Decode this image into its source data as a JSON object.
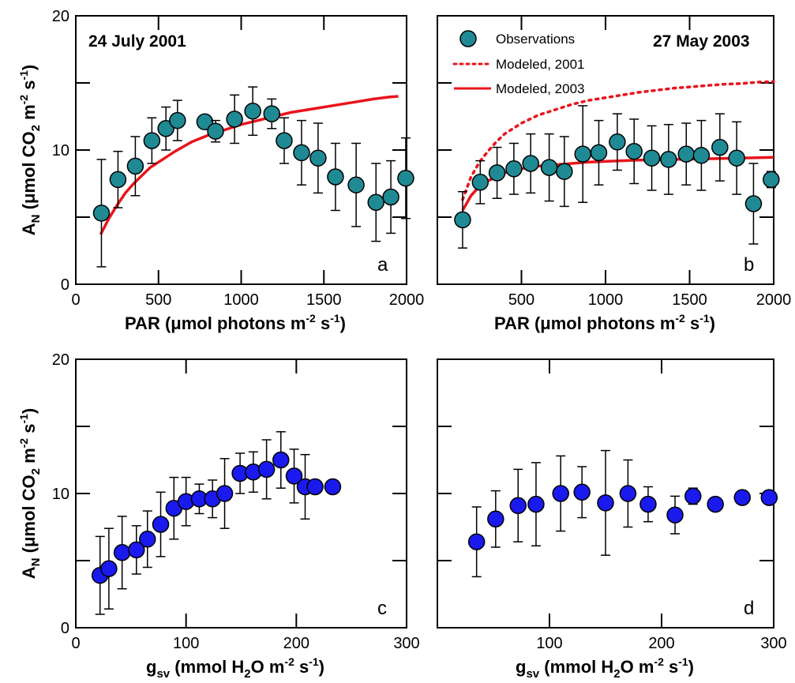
{
  "chart_data": [
    {
      "panel": "a",
      "type": "scatter",
      "annotation": "24 July 2001",
      "xlabel": "PAR (μmol photons m-2 s-1)",
      "ylabel": "AN (μmol CO2 m-2 s-1)",
      "xlim": [
        0,
        2000
      ],
      "ylim": [
        0,
        20
      ],
      "xticks": [
        0,
        500,
        1000,
        1500,
        2000
      ],
      "yticks": [
        0,
        10,
        20
      ],
      "marker_color": "#1f8a94",
      "line_color": "#e8141c",
      "series": [
        {
          "kind": "points",
          "x": [
            155,
            255,
            360,
            460,
            545,
            615,
            780,
            845,
            960,
            1070,
            1185,
            1260,
            1365,
            1465,
            1570,
            1695,
            1815,
            1905,
            1995
          ],
          "y": [
            5.3,
            7.8,
            8.8,
            10.7,
            11.6,
            12.2,
            12.1,
            11.4,
            12.3,
            12.9,
            12.7,
            10.7,
            9.8,
            9.4,
            8.0,
            7.4,
            6.1,
            6.5,
            7.9
          ],
          "err": [
            4.0,
            2.1,
            2.2,
            1.7,
            1.6,
            1.5,
            0.4,
            0.8,
            1.8,
            1.8,
            1.1,
            1.7,
            2.4,
            2.6,
            2.5,
            3.1,
            2.9,
            2.7,
            3.0
          ]
        },
        {
          "kind": "line",
          "style": "solid",
          "x": [
            150,
            200,
            250,
            300,
            350,
            400,
            450,
            500,
            600,
            700,
            800,
            900,
            1000,
            1100,
            1200,
            1300,
            1400,
            1500,
            1600,
            1700,
            1800,
            1900,
            1950
          ],
          "y": [
            3.7,
            4.9,
            5.9,
            6.8,
            7.5,
            8.1,
            8.7,
            9.1,
            9.9,
            10.6,
            11.1,
            11.5,
            11.9,
            12.2,
            12.5,
            12.8,
            13.0,
            13.2,
            13.4,
            13.6,
            13.8,
            13.95,
            14.0
          ]
        }
      ]
    },
    {
      "panel": "b",
      "type": "scatter",
      "annotation": "27 May 2003",
      "xlabel": "PAR (μmol photons m-2 s-1)",
      "ylabel": "",
      "xlim": [
        0,
        2000
      ],
      "ylim": [
        0,
        20
      ],
      "xticks": [
        500,
        1000,
        1500,
        2000
      ],
      "yticks": [],
      "marker_color": "#1f8a94",
      "line_color": "#e8141c",
      "legend": [
        "Observations",
        "Modeled, 2001",
        "Modeled, 2003"
      ],
      "legend_position": "top-left",
      "series": [
        {
          "name": "Observations",
          "kind": "points",
          "x": [
            150,
            255,
            355,
            455,
            555,
            665,
            755,
            865,
            960,
            1070,
            1170,
            1275,
            1375,
            1480,
            1570,
            1680,
            1780,
            1880,
            1985
          ],
          "y": [
            4.8,
            7.6,
            8.3,
            8.6,
            9.0,
            8.7,
            8.4,
            9.7,
            9.8,
            10.6,
            9.9,
            9.4,
            9.3,
            9.7,
            9.6,
            10.2,
            9.4,
            6.0,
            7.8
          ],
          "err": [
            2.1,
            1.6,
            1.9,
            1.9,
            2.2,
            2.5,
            2.6,
            3.6,
            2.4,
            2.1,
            2.4,
            2.4,
            2.6,
            2.3,
            2.6,
            2.5,
            2.7,
            3.0,
            0.6
          ]
        },
        {
          "name": "Modeled, 2001",
          "kind": "line",
          "style": "dotted",
          "x": [
            150,
            200,
            250,
            300,
            350,
            400,
            500,
            600,
            700,
            800,
            900,
            1000,
            1100,
            1200,
            1300,
            1400,
            1500,
            1600,
            1700,
            1800,
            1900,
            2000
          ],
          "y": [
            6.3,
            8.0,
            9.1,
            9.9,
            10.6,
            11.2,
            12.0,
            12.6,
            13.0,
            13.4,
            13.7,
            13.9,
            14.1,
            14.3,
            14.45,
            14.6,
            14.7,
            14.8,
            14.9,
            14.95,
            15.05,
            15.1
          ]
        },
        {
          "name": "Modeled, 2003",
          "kind": "line",
          "style": "solid",
          "x": [
            150,
            200,
            250,
            300,
            350,
            400,
            500,
            600,
            700,
            800,
            900,
            1000,
            1200,
            1400,
            1600,
            1800,
            2000
          ],
          "y": [
            5.5,
            6.6,
            7.3,
            7.7,
            8.0,
            8.3,
            8.6,
            8.8,
            8.9,
            9.0,
            9.1,
            9.15,
            9.25,
            9.3,
            9.35,
            9.4,
            9.45
          ]
        }
      ]
    },
    {
      "panel": "c",
      "type": "scatter",
      "xlabel": "gsv (mmol H2O m-2 s-1)",
      "ylabel": "AN (μmol CO2 m-2 s-1)",
      "xlim": [
        0,
        300
      ],
      "ylim": [
        0,
        20
      ],
      "xticks": [
        0,
        100,
        200,
        300
      ],
      "yticks": [
        0,
        10,
        20
      ],
      "marker_color": "#1a1aee",
      "series": [
        {
          "kind": "points",
          "x": [
            22,
            30,
            42,
            55,
            65,
            77,
            89,
            100,
            112,
            124,
            135,
            149,
            161,
            173,
            186,
            198,
            208,
            217,
            233
          ],
          "y": [
            3.9,
            4.4,
            5.6,
            5.8,
            6.6,
            7.7,
            8.9,
            9.4,
            9.6,
            9.6,
            10.0,
            11.5,
            11.6,
            11.8,
            12.5,
            11.3,
            10.5,
            10.5,
            10.5
          ],
          "err": [
            2.9,
            3.0,
            2.7,
            1.8,
            2.1,
            2.4,
            2.3,
            1.8,
            1.1,
            1.4,
            2.6,
            1.5,
            1.5,
            2.2,
            2.1,
            2.0,
            2.4,
            0,
            0
          ]
        }
      ]
    },
    {
      "panel": "d",
      "type": "scatter",
      "xlabel": "gsv (mmol H2O m-2 s-1)",
      "ylabel": "",
      "xlim": [
        0,
        300
      ],
      "ylim": [
        0,
        20
      ],
      "xticks": [
        100,
        200,
        300
      ],
      "yticks": [],
      "marker_color": "#1a1aee",
      "series": [
        {
          "kind": "points",
          "x": [
            35,
            52,
            72,
            88,
            110,
            129,
            150,
            170,
            188,
            212,
            228,
            248,
            272,
            296
          ],
          "y": [
            6.4,
            8.1,
            9.1,
            9.2,
            10.0,
            10.1,
            9.3,
            10.0,
            9.2,
            8.4,
            9.8,
            9.2,
            9.7,
            9.7
          ],
          "err": [
            2.6,
            2.1,
            2.7,
            3.1,
            2.8,
            1.9,
            3.9,
            2.5,
            1.3,
            1.4,
            0.6,
            0,
            0,
            0
          ]
        }
      ]
    }
  ],
  "labels": {
    "ylabel_top": {
      "main": "A",
      "sub": "N",
      "rest": " (μmol CO",
      "sub2": "2",
      "rest2": " m",
      "sup": "-2",
      "rest3": " s",
      "sup2": "-1",
      "end": ")"
    },
    "xlabel_par": {
      "main": "PAR (μmol photons m",
      "sup": "-2",
      "rest": " s",
      "sup2": "-1",
      "end": ")"
    },
    "xlabel_gsv": {
      "main": "g",
      "sub": "sv",
      "rest": " (mmol H",
      "sub2": "2",
      "rest2": "O m",
      "sup": "-2",
      "rest3": " s",
      "sup2": "-1",
      "end": ")"
    },
    "panel_a": "a",
    "panel_b": "b",
    "panel_c": "c",
    "panel_d": "d",
    "date_a": "24 July 2001",
    "date_b": "27 May 2003",
    "legend_obs": "Observations",
    "legend_2001": "Modeled, 2001",
    "legend_2003": "Modeled, 2003"
  }
}
